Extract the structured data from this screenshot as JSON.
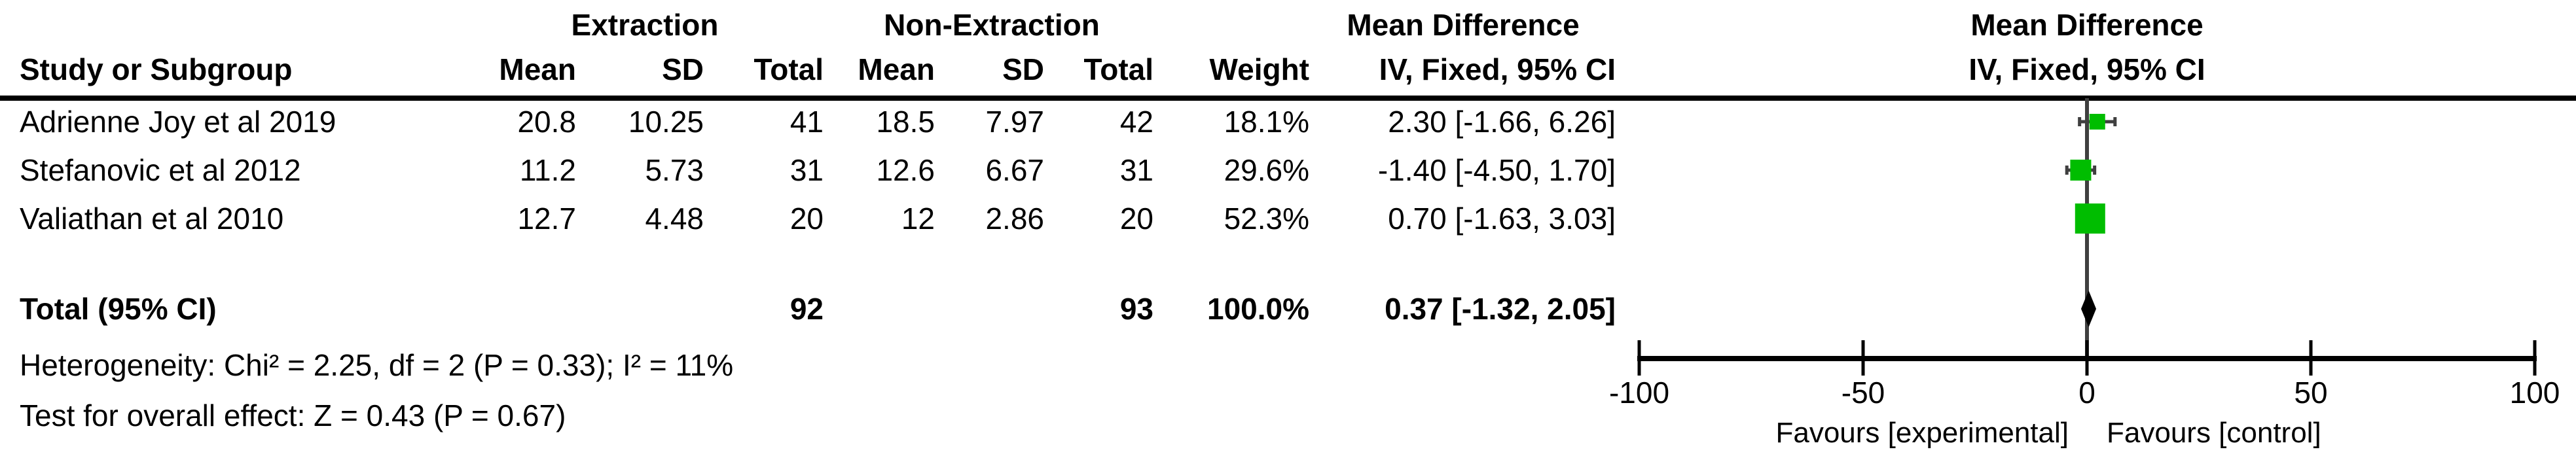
{
  "table": {
    "group1_label": "Extraction",
    "group2_label": "Non-Extraction",
    "effect_header_line1": "Mean Difference",
    "effect_header_line2": "IV, Fixed, 95% CI",
    "columns": {
      "study": "Study or Subgroup",
      "mean": "Mean",
      "sd": "SD",
      "total": "Total",
      "weight": "Weight",
      "ci": "IV, Fixed, 95% CI"
    },
    "rows": [
      {
        "study": "Adrienne Joy et al 2019",
        "mean1": "20.8",
        "sd1": "10.25",
        "total1": "41",
        "mean2": "18.5",
        "sd2": "7.97",
        "total2": "42",
        "weight": "18.1%",
        "ci": "2.30 [-1.66, 6.26]"
      },
      {
        "study": "Stefanovic et al 2012",
        "mean1": "11.2",
        "sd1": "5.73",
        "total1": "31",
        "mean2": "12.6",
        "sd2": "6.67",
        "total2": "31",
        "weight": "29.6%",
        "ci": "-1.40 [-4.50, 1.70]"
      },
      {
        "study": "Valiathan et al 2010",
        "mean1": "12.7",
        "sd1": "4.48",
        "total1": "20",
        "mean2": "12",
        "sd2": "2.86",
        "total2": "20",
        "weight": "52.3%",
        "ci": "0.70 [-1.63, 3.03]"
      }
    ],
    "total_row": {
      "label": "Total (95% CI)",
      "total1": "92",
      "total2": "93",
      "weight": "100.0%",
      "ci": "0.37 [-1.32, 2.05]"
    },
    "heterogeneity": "Heterogeneity: Chi² = 2.25, df = 2 (P = 0.33); I² = 11%",
    "overall_effect": "Test for overall effect: Z = 0.43 (P = 0.67)"
  },
  "plot": {
    "header_line1": "Mean Difference",
    "header_line2": "IV, Fixed, 95% CI",
    "favours_left": "Favours [experimental]",
    "favours_right": "Favours [control]"
  },
  "chart_data": {
    "type": "forest",
    "title": "Mean Difference — IV, Fixed, 95% CI",
    "effect_measure": "Mean Difference (IV, Fixed, 95% CI)",
    "x_axis": {
      "min": -100,
      "max": 100,
      "ticks": [
        -100,
        -50,
        0,
        50,
        100
      ]
    },
    "studies": [
      {
        "name": "Adrienne Joy et al 2019",
        "md": 2.3,
        "ci_low": -1.66,
        "ci_high": 6.26,
        "weight_pct": 18.1
      },
      {
        "name": "Stefanovic et al 2012",
        "md": -1.4,
        "ci_low": -4.5,
        "ci_high": 1.7,
        "weight_pct": 29.6
      },
      {
        "name": "Valiathan et al 2010",
        "md": 0.7,
        "ci_low": -1.63,
        "ci_high": 3.03,
        "weight_pct": 52.3
      }
    ],
    "total": {
      "name": "Total (95% CI)",
      "md": 0.37,
      "ci_low": -1.32,
      "ci_high": 2.05,
      "weight_pct": 100.0
    },
    "legend_left": "Favours [experimental]",
    "legend_right": "Favours [control]",
    "colors": {
      "marker_fill": "#00BD00",
      "ci_line": "#3F3F3F",
      "axis": "#000000",
      "diamond": "#000000"
    }
  }
}
